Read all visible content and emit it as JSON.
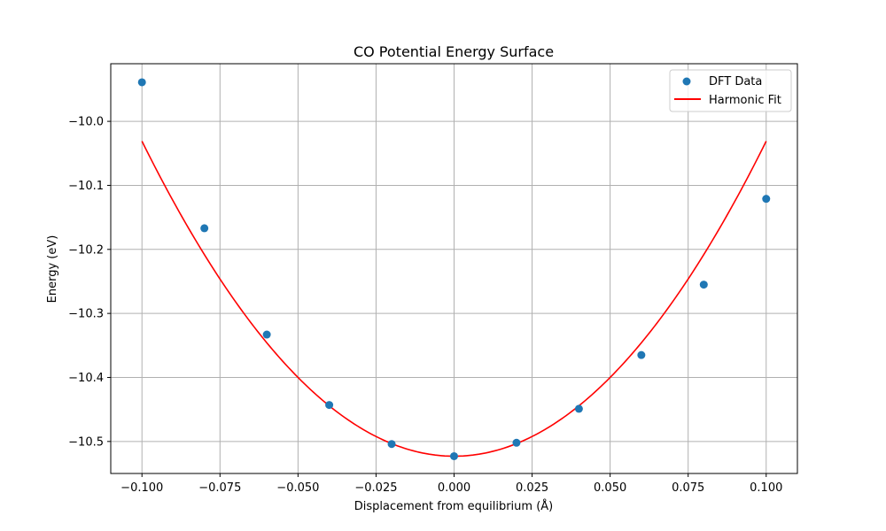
{
  "chart_data": {
    "type": "line",
    "title": "CO Potential Energy Surface",
    "xlabel": "Displacement from equilibrium (Å)",
    "ylabel": "Energy (eV)",
    "xlim": [
      -0.11,
      0.11
    ],
    "ylim": [
      -10.55,
      -9.91
    ],
    "xticks": [
      -0.1,
      -0.075,
      -0.05,
      -0.025,
      0.0,
      0.025,
      0.05,
      0.075,
      0.1
    ],
    "xtick_labels": [
      "−0.100",
      "−0.075",
      "−0.050",
      "−0.025",
      "0.000",
      "0.025",
      "0.050",
      "0.075",
      "0.100"
    ],
    "yticks": [
      -10.0,
      -10.1,
      -10.2,
      -10.3,
      -10.4,
      -10.5
    ],
    "ytick_labels": [
      "−10.0",
      "−10.1",
      "−10.2",
      "−10.3",
      "−10.4",
      "−10.5"
    ],
    "grid": true,
    "legend_position": "top-right",
    "series": [
      {
        "name": "DFT Data",
        "kind": "scatter",
        "color": "#1f77b4",
        "x": [
          -0.1,
          -0.08,
          -0.06,
          -0.04,
          -0.02,
          0.0,
          0.02,
          0.04,
          0.06,
          0.08,
          0.1
        ],
        "y": [
          -9.939,
          -10.167,
          -10.333,
          -10.443,
          -10.504,
          -10.523,
          -10.502,
          -10.449,
          -10.365,
          -10.255,
          -10.121
        ]
      },
      {
        "name": "Harmonic Fit",
        "kind": "line",
        "color": "#ff0000",
        "model": {
          "x0": 0.0,
          "E0": -10.523,
          "k": 49.2
        },
        "x_range": [
          -0.1,
          0.1
        ]
      }
    ]
  }
}
